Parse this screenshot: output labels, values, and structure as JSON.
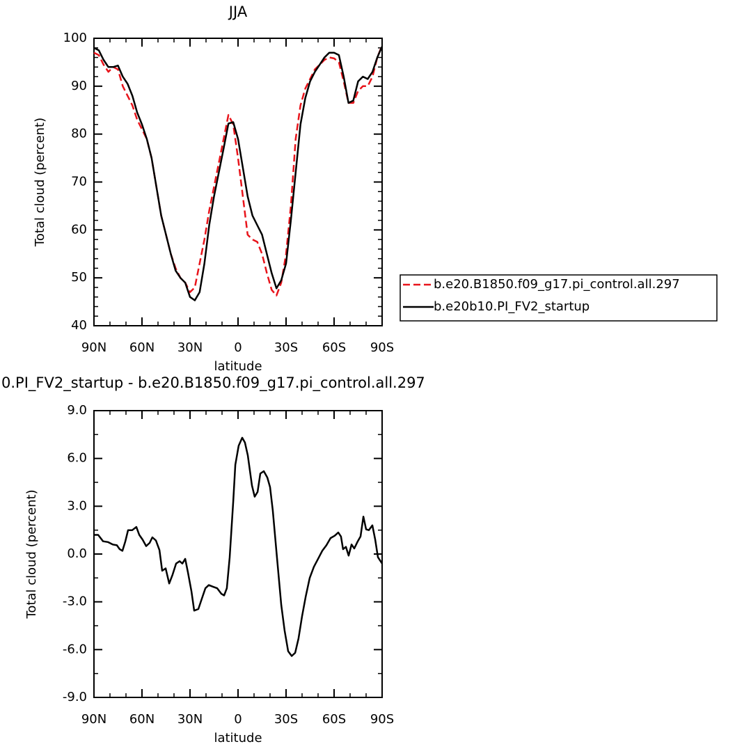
{
  "chart_data": [
    {
      "type": "line",
      "title": "JJA",
      "xlabel": "latitude",
      "ylabel": "Total cloud (percent)",
      "x": [
        90,
        87,
        84,
        81,
        78,
        75,
        72,
        69,
        66,
        63,
        60,
        57,
        54,
        51,
        48,
        45,
        42,
        39,
        36,
        33,
        30,
        27,
        24,
        21,
        18,
        15,
        12,
        9,
        6,
        3,
        0,
        -3,
        -6,
        -9,
        -12,
        -15,
        -18,
        -21,
        -24,
        -27,
        -30,
        -33,
        -36,
        -39,
        -42,
        -45,
        -48,
        -51,
        -54,
        -57,
        -60,
        -63,
        -66,
        -69,
        -72,
        -75,
        -78,
        -81,
        -84,
        -87,
        -90
      ],
      "series": [
        {
          "name": "b.e20.B1850.f09_g17.pi_control.all.297",
          "color": "#e8141b",
          "line_style": "dashed",
          "values": [
            97,
            96.5,
            94.5,
            93,
            94,
            93.5,
            90,
            88,
            86,
            83,
            81,
            79,
            75,
            69,
            63,
            59,
            55,
            52,
            50,
            49,
            47,
            48,
            53,
            58,
            64,
            69,
            74,
            79,
            84,
            82,
            75,
            67,
            59,
            58,
            57.5,
            55,
            51,
            47.5,
            46.3,
            49,
            55,
            65,
            79,
            86,
            89.5,
            91.5,
            93.5,
            94.5,
            95.5,
            96,
            95.8,
            95,
            91,
            86.5,
            86.5,
            89,
            90,
            90,
            92,
            96,
            98.5
          ]
        },
        {
          "name": "b.e20b10.PI_FV2_startup",
          "color": "#000000",
          "line_style": "solid",
          "values": [
            98,
            97.5,
            95.5,
            94,
            94,
            94.3,
            92,
            90.5,
            88,
            84.5,
            82,
            79,
            75,
            69,
            63,
            59,
            55,
            51.5,
            50,
            49,
            46,
            45.3,
            47,
            53,
            61,
            67,
            72,
            77,
            82.2,
            82.5,
            79,
            73,
            67,
            63,
            61,
            59,
            55,
            51,
            47.8,
            49.5,
            53,
            62,
            72,
            82,
            87.5,
            91,
            93,
            94.5,
            96,
            97,
            97,
            96.5,
            92,
            86.5,
            87,
            91,
            92,
            91.5,
            93,
            96,
            98.3
          ]
        }
      ],
      "xlim": [
        90,
        -90
      ],
      "xticks": [
        {
          "value": 90,
          "label": "90N"
        },
        {
          "value": 60,
          "label": "60N"
        },
        {
          "value": 30,
          "label": "30N"
        },
        0,
        {
          "value": -30,
          "label": "30S"
        },
        {
          "value": -60,
          "label": "60S"
        },
        {
          "value": -90,
          "label": "90S"
        }
      ],
      "ylim": [
        40,
        100
      ],
      "yticks": [
        40,
        50,
        60,
        70,
        80,
        90,
        100
      ],
      "legend": "outside right",
      "grid": false
    },
    {
      "type": "line",
      "title": "0.PI_FV2_startup - b.e20.B1850.f09_g17.pi_control.all.297",
      "xlabel": "latitude",
      "ylabel": "Total cloud (percent)",
      "x": [
        90,
        87.4,
        84.3,
        81.3,
        78.3,
        75.7,
        73.9,
        72.2,
        70.4,
        68.7,
        66.1,
        63.5,
        61.7,
        59.6,
        57.4,
        55.2,
        53.5,
        51.3,
        49.1,
        47.4,
        45.2,
        43,
        40.9,
        38.7,
        36.5,
        34.8,
        33,
        31.3,
        29.1,
        27.4,
        24.8,
        22.6,
        20.4,
        18.3,
        15.7,
        13,
        10.4,
        8.7,
        7,
        5.2,
        3,
        1.7,
        -0.4,
        -2.6,
        -4.3,
        -6.1,
        -8.7,
        -10.4,
        -12.2,
        -13.9,
        -16.1,
        -18.3,
        -20,
        -21.7,
        -24.3,
        -27,
        -29.1,
        -31.3,
        -33.5,
        -35.7,
        -37.8,
        -40,
        -42.2,
        -44.8,
        -47.4,
        -50,
        -52.6,
        -55.2,
        -57.8,
        -60.4,
        -62.6,
        -64.3,
        -65.6,
        -67.4,
        -69.1,
        -70.9,
        -72.6,
        -74.8,
        -76.5,
        -78.3,
        -80,
        -81.7,
        -83.9,
        -85.7,
        -87.4,
        -90
      ],
      "values": [
        1.2,
        1.2,
        0.8,
        0.75,
        0.6,
        0.55,
        0.3,
        0.2,
        0.8,
        1.5,
        1.5,
        1.7,
        1.2,
        0.9,
        0.5,
        0.7,
        1.05,
        0.85,
        0.25,
        -1.05,
        -0.9,
        -1.85,
        -1.3,
        -0.6,
        -0.45,
        -0.6,
        -0.3,
        -1.15,
        -2.35,
        -3.55,
        -3.45,
        -2.8,
        -2.15,
        -1.95,
        -2.05,
        -2.15,
        -2.5,
        -2.6,
        -2.15,
        -0.2,
        3.3,
        5.6,
        6.8,
        7.3,
        7.0,
        6.2,
        4.3,
        3.6,
        3.9,
        5.05,
        5.2,
        4.8,
        4.2,
        2.75,
        -0.2,
        -3.2,
        -4.8,
        -6.1,
        -6.4,
        -6.2,
        -5.3,
        -3.9,
        -2.7,
        -1.5,
        -0.8,
        -0.3,
        0.2,
        0.55,
        1.0,
        1.15,
        1.35,
        1.1,
        0.3,
        0.45,
        -0.1,
        0.6,
        0.35,
        0.8,
        1.1,
        2.35,
        1.55,
        1.5,
        1.8,
        0.9,
        -0.2,
        -0.6
      ],
      "color": "#000000",
      "xlim": [
        90,
        -90
      ],
      "xticks": [
        {
          "value": 90,
          "label": "90N"
        },
        {
          "value": 60,
          "label": "60N"
        },
        {
          "value": 30,
          "label": "30N"
        },
        0,
        {
          "value": -30,
          "label": "30S"
        },
        {
          "value": -60,
          "label": "60S"
        },
        {
          "value": -90,
          "label": "90S"
        }
      ],
      "ylim": [
        -9,
        9
      ],
      "yticks": [
        {
          "value": -9,
          "label": "-9.0"
        },
        {
          "value": -6,
          "label": "-6.0"
        },
        {
          "value": -3,
          "label": "-3.0"
        },
        {
          "value": 0,
          "label": "0.0"
        },
        {
          "value": 3,
          "label": "3.0"
        },
        {
          "value": 6,
          "label": "6.0"
        },
        {
          "value": 9,
          "label": "9.0"
        }
      ],
      "grid": false
    }
  ]
}
